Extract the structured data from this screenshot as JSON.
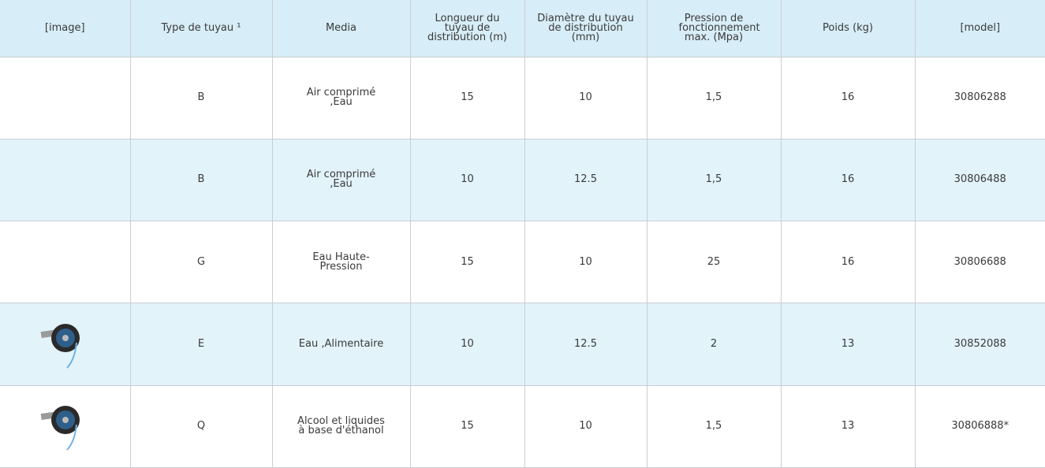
{
  "table": {
    "headers": [
      "[image]",
      "Type de tuyau ¹",
      "Media",
      "Longueur du tuyau de distribution (m)",
      "Diamètre du tuyau de distribution (mm)",
      "Pression de fonctionnement max. (Mpa)",
      "Poids (kg)",
      "[model]"
    ],
    "rows": [
      [
        "B",
        "Air comprimé ,Eau",
        "15",
        "10",
        "1,5",
        "16",
        "30806288"
      ],
      [
        "B",
        "Air comprimé ,Eau",
        "10",
        "12.5",
        "1,5",
        "16",
        "30806488"
      ],
      [
        "G",
        "Eau Haute-Pression",
        "15",
        "10",
        "25",
        "16",
        "30806688"
      ],
      [
        "E",
        "Eau ,Alimentaire",
        "10",
        "12.5",
        "2",
        "13",
        "30852088"
      ],
      [
        "Q",
        "Alcool et liquides à base d'éthanol",
        "15",
        "10",
        "1,5",
        "13",
        "30806888*"
      ]
    ]
  }
}
